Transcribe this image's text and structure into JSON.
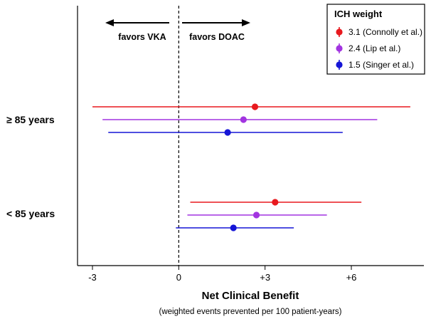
{
  "chart_data": {
    "type": "forest",
    "xlabel": "Net Clinical Benefit",
    "xlabel_sub": "(weighted events prevented per 100 patient-years)",
    "xlim": [
      -3.4,
      8.3
    ],
    "xticks": [
      {
        "value": -3,
        "label": "-3"
      },
      {
        "value": 0,
        "label": "0"
      },
      {
        "value": 3,
        "label": "+3"
      },
      {
        "value": 6,
        "label": "+6"
      }
    ],
    "reference_line": 0,
    "direction_labels": {
      "left": "favors VKA",
      "right": "favors DOAC"
    },
    "legend": {
      "title": "ICH weight",
      "position": "top-right"
    },
    "series": [
      {
        "name": "3.1 (Connolly et al.)",
        "color": "#e8191e"
      },
      {
        "name": "2.4 (Lip et al.)",
        "color": "#a234e0"
      },
      {
        "name": "1.5 (Singer et al.)",
        "color": "#1515d6"
      }
    ],
    "groups": [
      {
        "label": "≥ 85 years",
        "estimates": [
          {
            "point": 2.65,
            "lo": -3.0,
            "hi": 8.05
          },
          {
            "point": 2.25,
            "lo": -2.65,
            "hi": 6.9
          },
          {
            "point": 1.7,
            "lo": -2.45,
            "hi": 5.7
          }
        ]
      },
      {
        "label": "< 85 years",
        "estimates": [
          {
            "point": 3.35,
            "lo": 0.4,
            "hi": 6.35
          },
          {
            "point": 2.7,
            "lo": 0.3,
            "hi": 5.15
          },
          {
            "point": 1.9,
            "lo": -0.1,
            "hi": 4.0
          }
        ]
      }
    ]
  }
}
